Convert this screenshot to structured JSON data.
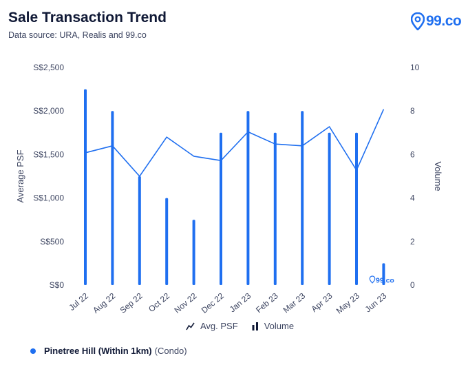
{
  "header": {
    "title": "Sale Transaction Trend",
    "subtitle": "Data source: URA, Realis and 99.co"
  },
  "logo": {
    "text": "99.co",
    "watermark_text": "99.co",
    "icon": "location-pin-icon"
  },
  "colors": {
    "accent": "#1f6ff0",
    "text": "#101936",
    "muted": "#3d4561"
  },
  "chart_data": {
    "type": "bar",
    "combo": "bar-line",
    "categories": [
      "Jul 22",
      "Aug 22",
      "Sep 22",
      "Oct 22",
      "Nov 22",
      "Dec 22",
      "Jan 23",
      "Feb 23",
      "Mar 23",
      "Apr 23",
      "May 23",
      "Jun 23"
    ],
    "series": [
      {
        "name": "Volume",
        "type": "bar",
        "axis": "right",
        "values": [
          9,
          8,
          5,
          4,
          3,
          7,
          8,
          7,
          8,
          7,
          7,
          1
        ]
      },
      {
        "name": "Avg. PSF",
        "type": "line",
        "axis": "left",
        "values": [
          1520,
          1600,
          1250,
          1700,
          1480,
          1430,
          1760,
          1620,
          1600,
          1820,
          1320,
          2020
        ]
      }
    ],
    "ylabel": "Average PSF",
    "y2label": "Volume",
    "ylim": [
      0,
      2500
    ],
    "y2lim": [
      0,
      10
    ],
    "yticks": [
      "S$0",
      "S$500",
      "S$1,000",
      "S$1,500",
      "S$2,000",
      "S$2,500"
    ],
    "y2ticks": [
      "0",
      "2",
      "4",
      "6",
      "8",
      "10"
    ],
    "grid": false,
    "legend": "bottom"
  },
  "legend": {
    "line_label": "Avg. PSF",
    "bar_label": "Volume"
  },
  "footer": {
    "name": "Pinetree Hill (Within 1km)",
    "type": "(Condo)"
  }
}
